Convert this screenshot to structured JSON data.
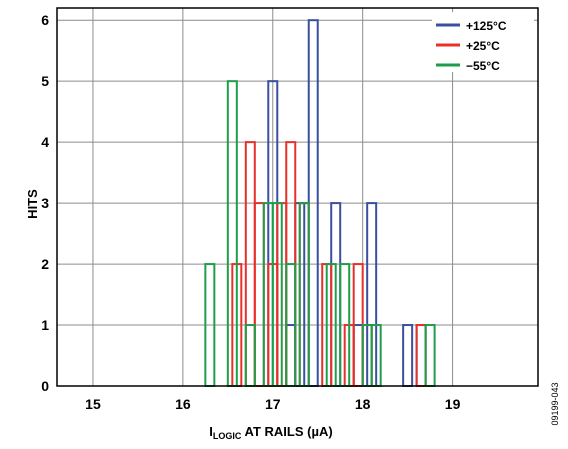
{
  "figure_id": "09199-043",
  "colors": {
    "series_125": "#3a4fa0",
    "series_25": "#e8302a",
    "series_m55": "#1f9e4a",
    "grid": "#8c8c8c",
    "axes": "#000000"
  },
  "chart_data": {
    "type": "bar",
    "subtype": "histogram (unfilled bins)",
    "xlabel": {
      "main": "I",
      "subscript": "LOGIC",
      "rest": " AT RAILS (µA)"
    },
    "ylabel": "HITS",
    "xlim": [
      14.6,
      19.95
    ],
    "ylim": [
      0,
      6.2
    ],
    "bin_width": 0.1,
    "x_ticks": [
      {
        "value": 15,
        "label": "15"
      },
      {
        "value": 16,
        "label": "16"
      },
      {
        "value": 17,
        "label": "17"
      },
      {
        "value": 18,
        "label": "18"
      },
      {
        "value": 19,
        "label": "19"
      }
    ],
    "y_ticks": [
      {
        "value": 0,
        "label": "0"
      },
      {
        "value": 1,
        "label": "1"
      },
      {
        "value": 2,
        "label": "2"
      },
      {
        "value": 3,
        "label": "3"
      },
      {
        "value": 4,
        "label": "4"
      },
      {
        "value": 5,
        "label": "5"
      },
      {
        "value": 6,
        "label": "6"
      }
    ],
    "grid": true,
    "legend_position": "top-right",
    "series": [
      {
        "name": "+125°C",
        "color": "#3a4fa0",
        "bins": [
          {
            "x": 17.0,
            "count": 5
          },
          {
            "x": 17.2,
            "count": 1
          },
          {
            "x": 17.3,
            "count": 3
          },
          {
            "x": 17.45,
            "count": 6
          },
          {
            "x": 17.7,
            "count": 3
          },
          {
            "x": 17.95,
            "count": 1
          },
          {
            "x": 18.1,
            "count": 3
          },
          {
            "x": 18.5,
            "count": 1
          },
          {
            "x": 18.65,
            "count": 1
          }
        ]
      },
      {
        "name": "+25°C",
        "color": "#e8302a",
        "bins": [
          {
            "x": 16.6,
            "count": 2
          },
          {
            "x": 16.75,
            "count": 4
          },
          {
            "x": 16.85,
            "count": 3
          },
          {
            "x": 17.0,
            "count": 2
          },
          {
            "x": 17.1,
            "count": 3
          },
          {
            "x": 17.2,
            "count": 4
          },
          {
            "x": 17.35,
            "count": 3
          },
          {
            "x": 17.6,
            "count": 2
          },
          {
            "x": 17.85,
            "count": 1
          },
          {
            "x": 17.95,
            "count": 2
          },
          {
            "x": 18.05,
            "count": 1
          },
          {
            "x": 18.65,
            "count": 1
          }
        ]
      },
      {
        "name": "−55°C",
        "color": "#1f9e4a",
        "bins": [
          {
            "x": 16.3,
            "count": 2
          },
          {
            "x": 16.55,
            "count": 5
          },
          {
            "x": 16.75,
            "count": 1
          },
          {
            "x": 16.95,
            "count": 3
          },
          {
            "x": 17.05,
            "count": 3
          },
          {
            "x": 17.2,
            "count": 2
          },
          {
            "x": 17.35,
            "count": 3
          },
          {
            "x": 17.65,
            "count": 2
          },
          {
            "x": 17.8,
            "count": 2
          },
          {
            "x": 18.05,
            "count": 1
          },
          {
            "x": 18.15,
            "count": 1
          },
          {
            "x": 18.75,
            "count": 1
          }
        ]
      }
    ]
  }
}
